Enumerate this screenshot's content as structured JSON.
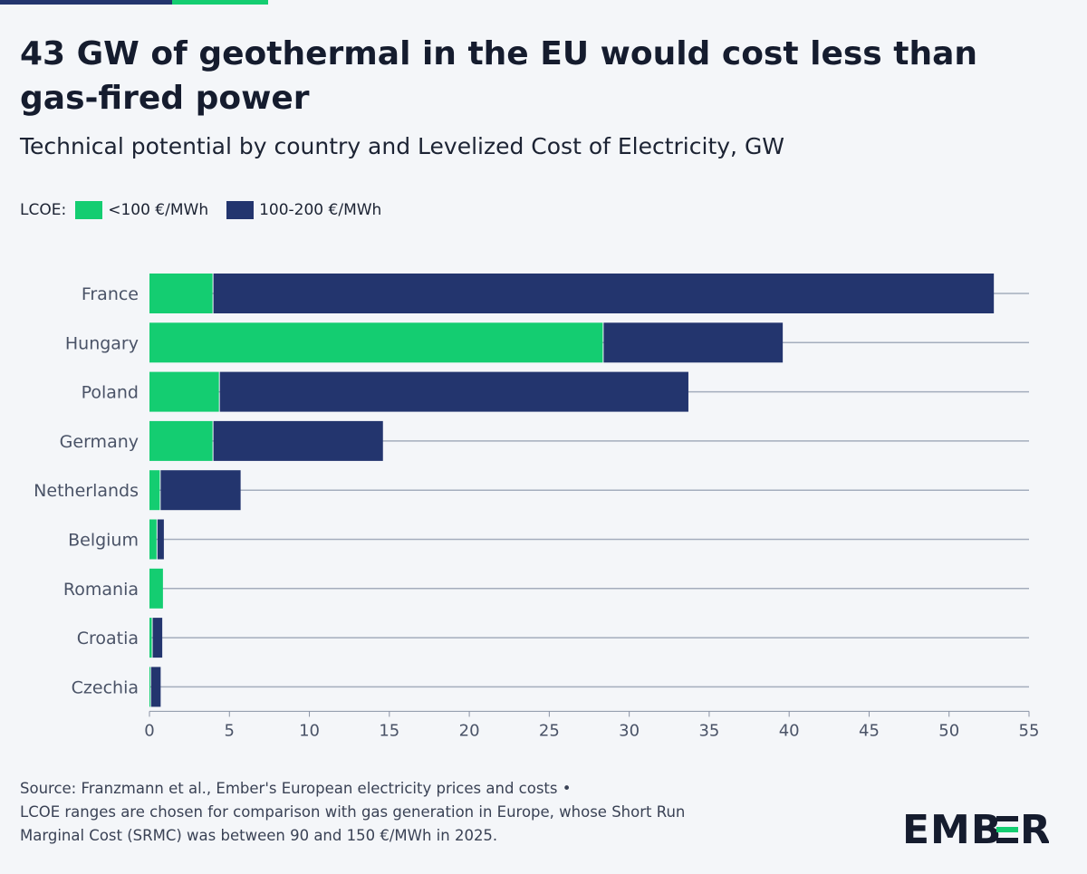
{
  "header": {
    "title": "43 GW of geothermal in the EU would cost less than gas-fired power",
    "subtitle": "Technical potential by country and Levelized Cost of Electricity, GW"
  },
  "legend": {
    "label": "LCOE:",
    "items": [
      {
        "name": "<100 €/MWh",
        "color": "#14cd71"
      },
      {
        "name": "100-200 €/MWh",
        "color": "#23356e"
      }
    ]
  },
  "chart_data": {
    "type": "bar",
    "orientation": "horizontal",
    "stacked": true,
    "categories": [
      "France",
      "Hungary",
      "Poland",
      "Germany",
      "Netherlands",
      "Belgium",
      "Romania",
      "Croatia",
      "Czechia"
    ],
    "series": [
      {
        "name": "<100 €/MWh",
        "color": "#14cd71",
        "values": [
          4.0,
          28.4,
          4.4,
          4.0,
          0.7,
          0.5,
          0.9,
          0.2,
          0.1
        ]
      },
      {
        "name": "100-200 €/MWh",
        "color": "#23356e",
        "values": [
          48.8,
          11.2,
          29.3,
          10.6,
          5.0,
          0.4,
          0.0,
          0.6,
          0.6
        ]
      }
    ],
    "xlim": [
      0,
      55
    ],
    "xticks": [
      0,
      5,
      10,
      15,
      20,
      25,
      30,
      35,
      40,
      45,
      50,
      55
    ],
    "xlabel": "",
    "ylabel": "",
    "grid": "horizontal lines per category"
  },
  "footer": {
    "line1": "Source: Franzmann et al., Ember's European electricity prices and costs •",
    "line2": "LCOE ranges are chosen for comparison with gas generation in Europe, whose Short Run",
    "line3": "Marginal Cost (SRMC) was between 90 and 150 €/MWh in 2025."
  },
  "brand": {
    "logo_text": "EMBER"
  }
}
